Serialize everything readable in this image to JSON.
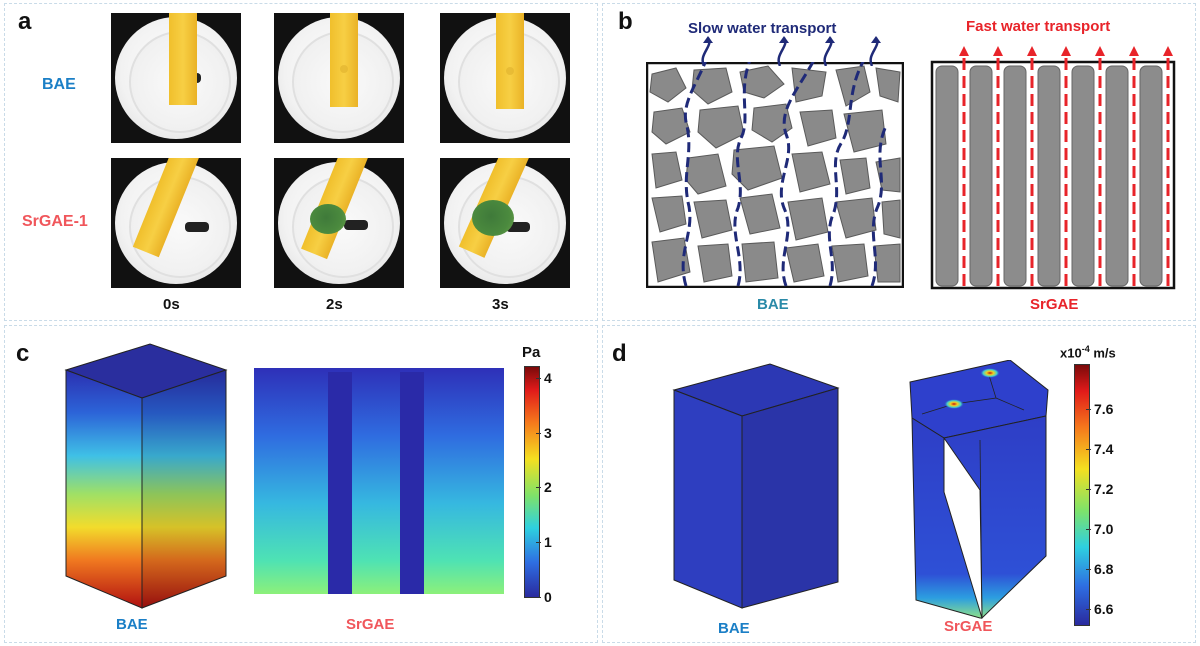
{
  "panels": {
    "a": {
      "label": "a",
      "row_labels": [
        "BAE",
        "SrGAE-1"
      ],
      "time_labels": [
        "0s",
        "2s",
        "3s"
      ]
    },
    "b": {
      "label": "b",
      "slow_label": "Slow water transport",
      "fast_label": "Fast water transport",
      "left_caption": "BAE",
      "right_caption": "SrGAE"
    },
    "c": {
      "label": "c",
      "left_caption": "BAE",
      "right_caption": "SrGAE",
      "colorbar": {
        "unit": "Pa",
        "ticks": [
          "4",
          "3",
          "2",
          "1",
          "0"
        ],
        "range": [
          0,
          4.2
        ],
        "colormap": "jet"
      }
    },
    "d": {
      "label": "d",
      "left_caption": "BAE",
      "right_caption": "SrGAE",
      "colorbar": {
        "unit": "x10",
        "unit_exp": "-4",
        "unit_tail": " m/s",
        "ticks": [
          "7.6",
          "7.4",
          "7.2",
          "7.0",
          "6.8",
          "6.6"
        ],
        "range": [
          6.52,
          7.82
        ],
        "colormap": "jet"
      }
    }
  },
  "colors": {
    "bae_blue": "#1b7fc6",
    "srgae_red": "#f0565b",
    "slow_navy": "#1f2a78",
    "fast_red": "#e8242a",
    "particle_gray": "#8a8a8a",
    "pillar_gray": "#8c8c8c",
    "panel_border": "#c9dbe8"
  }
}
